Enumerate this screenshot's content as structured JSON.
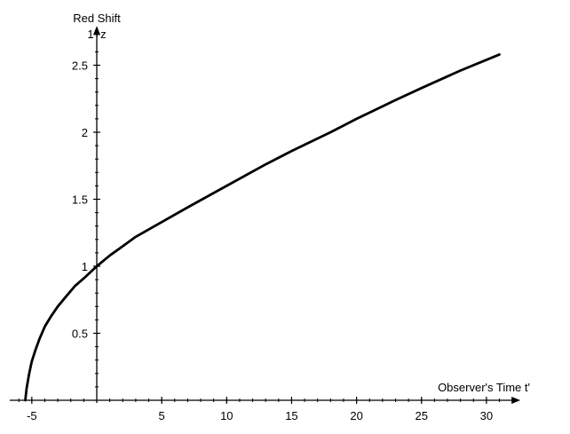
{
  "chart_data": {
    "type": "line",
    "title": "",
    "xlabel": "Observer's Time t'",
    "ylabel_line1": "Red Shift",
    "ylabel_line2": "1+z",
    "xlim": [
      -6.5,
      32
    ],
    "ylim": [
      0,
      2.7
    ],
    "xticks": [
      -5,
      5,
      10,
      15,
      20,
      25,
      30
    ],
    "xticks_minor": [
      -6,
      -5,
      -4,
      -3,
      -2,
      -1,
      1,
      2,
      3,
      4,
      5,
      6,
      7,
      8,
      9,
      10,
      11,
      12,
      13,
      14,
      15,
      16,
      17,
      18,
      19,
      20,
      21,
      22,
      23,
      24,
      25,
      26,
      27,
      28,
      29,
      30,
      31
    ],
    "xtick_labels": [
      "-5",
      "5",
      "10",
      "15",
      "20",
      "25",
      "30"
    ],
    "yticks": [
      0.5,
      1,
      1.5,
      2,
      2.5
    ],
    "yticks_minor": [
      0.1,
      0.2,
      0.3,
      0.4,
      0.6,
      0.7,
      0.8,
      0.9,
      1.1,
      1.2,
      1.3,
      1.4,
      1.6,
      1.7,
      1.8,
      1.9,
      2.1,
      2.2,
      2.3,
      2.4,
      2.6
    ],
    "ytick_labels": [
      "0.5",
      "1",
      "1.5",
      "2",
      "2.5"
    ],
    "grid": false,
    "series": [
      {
        "x": [
          -5.5,
          -5.4,
          -5.2,
          -5.0,
          -4.7,
          -4.4,
          -4.0,
          -3.5,
          -3.0,
          -2.4,
          -1.7,
          -1.0,
          0,
          1,
          2,
          3,
          5,
          7,
          10,
          13,
          15,
          18,
          20,
          23,
          25,
          28,
          31
        ],
        "y": [
          0.0,
          0.09,
          0.2,
          0.29,
          0.38,
          0.46,
          0.55,
          0.63,
          0.7,
          0.77,
          0.85,
          0.91,
          1.0,
          1.08,
          1.15,
          1.22,
          1.33,
          1.44,
          1.6,
          1.76,
          1.86,
          2.0,
          2.1,
          2.24,
          2.33,
          2.46,
          2.58
        ]
      }
    ]
  }
}
